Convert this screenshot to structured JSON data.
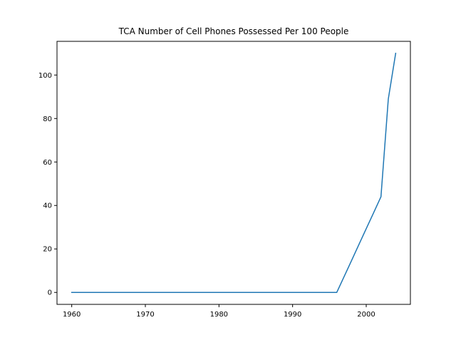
{
  "chart_data": {
    "type": "line",
    "title": "TCA Number of Cell Phones Possessed Per 100 People",
    "xlabel": "",
    "ylabel": "",
    "xlim": [
      1958,
      2006
    ],
    "ylim": [
      -5.5,
      115.5
    ],
    "grid": false,
    "x_ticks": [
      1960,
      1970,
      1980,
      1990,
      2000
    ],
    "y_ticks": [
      0,
      20,
      40,
      60,
      80,
      100
    ],
    "series": [
      {
        "color": "#1f77b4",
        "x": [
          1960,
          1965,
          1970,
          1975,
          1980,
          1985,
          1990,
          1995,
          1996,
          1997,
          1998,
          1999,
          2000,
          2001,
          2002,
          2003,
          2004
        ],
        "y": [
          0,
          0,
          0,
          0,
          0,
          0,
          0,
          0,
          0,
          7.3,
          14.6,
          22,
          29.3,
          36.6,
          44,
          89,
          110
        ]
      }
    ]
  }
}
